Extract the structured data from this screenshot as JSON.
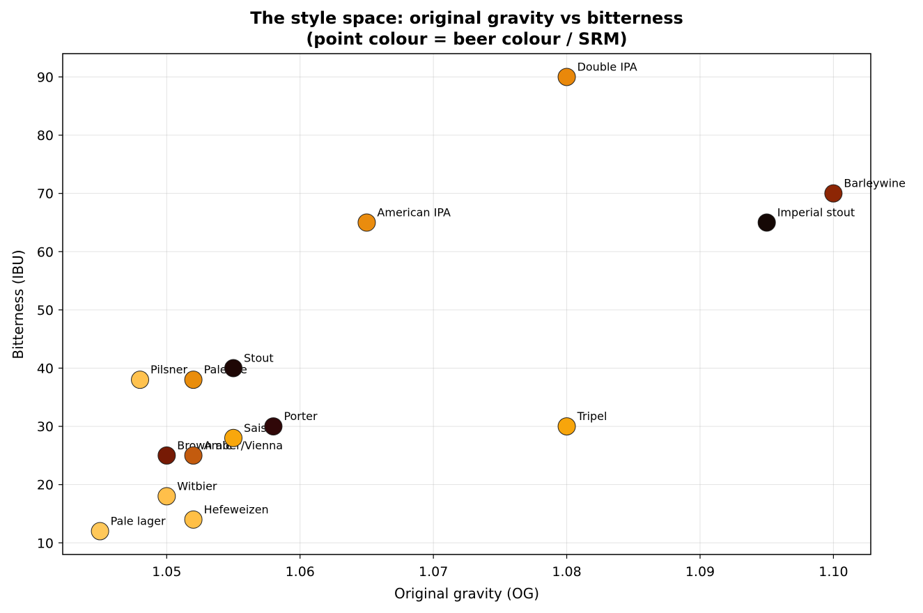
{
  "chart_data": {
    "type": "scatter",
    "title_line1": "The style space: original gravity vs bitterness",
    "title_line2": "(point colour = beer colour / SRM)",
    "xlabel": "Original gravity (OG)",
    "ylabel": "Bitterness (IBU)",
    "xlim": [
      1.0422,
      1.1028
    ],
    "ylim": [
      8,
      94
    ],
    "xticks": [
      {
        "value": 1.05,
        "label": "1.05"
      },
      {
        "value": 1.06,
        "label": "1.06"
      },
      {
        "value": 1.07,
        "label": "1.07"
      },
      {
        "value": 1.08,
        "label": "1.08"
      },
      {
        "value": 1.09,
        "label": "1.09"
      },
      {
        "value": 1.1,
        "label": "1.10"
      }
    ],
    "yticks": [
      {
        "value": 10,
        "label": "10"
      },
      {
        "value": 20,
        "label": "20"
      },
      {
        "value": 30,
        "label": "30"
      },
      {
        "value": 40,
        "label": "40"
      },
      {
        "value": 50,
        "label": "50"
      },
      {
        "value": 60,
        "label": "60"
      },
      {
        "value": 70,
        "label": "70"
      },
      {
        "value": 80,
        "label": "80"
      },
      {
        "value": 90,
        "label": "90"
      }
    ],
    "grid": true,
    "points": [
      {
        "label": "Pale lager",
        "x": 1.045,
        "y": 12,
        "color": "#FFC85A"
      },
      {
        "label": "Pilsner",
        "x": 1.048,
        "y": 38,
        "color": "#FFC24F"
      },
      {
        "label": "Witbier",
        "x": 1.05,
        "y": 18,
        "color": "#FFBF4A"
      },
      {
        "label": "Brown ale",
        "x": 1.05,
        "y": 25,
        "color": "#761A05"
      },
      {
        "label": "Pale ale",
        "x": 1.052,
        "y": 38,
        "color": "#E98D0C"
      },
      {
        "label": "Amber/Vienna",
        "x": 1.052,
        "y": 25,
        "color": "#C35B0E"
      },
      {
        "label": "Hefeweizen",
        "x": 1.052,
        "y": 14,
        "color": "#FFBF46"
      },
      {
        "label": "Stout",
        "x": 1.055,
        "y": 40,
        "color": "#1E0705"
      },
      {
        "label": "Saison",
        "x": 1.055,
        "y": 28,
        "color": "#F8A70C"
      },
      {
        "label": "Porter",
        "x": 1.058,
        "y": 30,
        "color": "#300708"
      },
      {
        "label": "American IPA",
        "x": 1.065,
        "y": 65,
        "color": "#EA8C0E"
      },
      {
        "label": "Double IPA",
        "x": 1.08,
        "y": 90,
        "color": "#E9880A"
      },
      {
        "label": "Tripel",
        "x": 1.08,
        "y": 30,
        "color": "#F7A50B"
      },
      {
        "label": "Imperial stout",
        "x": 1.095,
        "y": 65,
        "color": "#150805"
      },
      {
        "label": "Barleywine",
        "x": 1.1,
        "y": 70,
        "color": "#8D2605"
      }
    ]
  }
}
